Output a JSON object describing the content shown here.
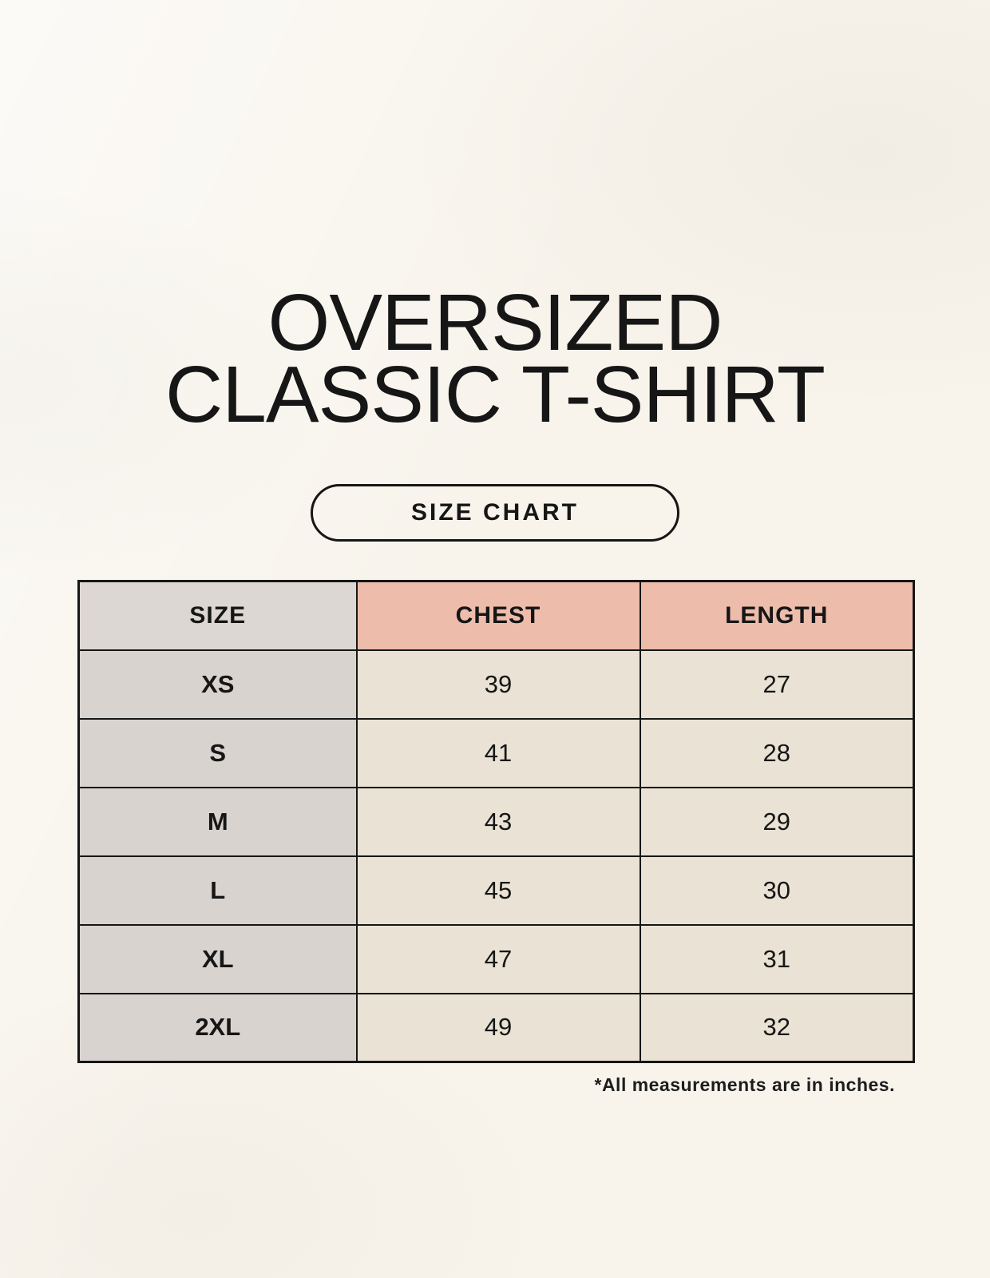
{
  "page": {
    "title_line1": "OVERSIZED",
    "title_line2": "CLASSIC T-SHIRT",
    "button_label": "SIZE CHART",
    "footnote": "*All measurements are in inches."
  },
  "chart_data": {
    "type": "table",
    "title": "OVERSIZED CLASSIC T-SHIRT — SIZE CHART",
    "columns": [
      "SIZE",
      "CHEST",
      "LENGTH"
    ],
    "rows": [
      [
        "XS",
        "39",
        "27"
      ],
      [
        "S",
        "41",
        "28"
      ],
      [
        "M",
        "43",
        "29"
      ],
      [
        "L",
        "45",
        "30"
      ],
      [
        "XL",
        "47",
        "31"
      ],
      [
        "2XL",
        "49",
        "32"
      ]
    ],
    "units_note": "*All measurements are in inches."
  },
  "colors": {
    "background": "#f8f4ec",
    "header_label_bg": "#ddd7d3",
    "header_accent_bg": "#eebcab",
    "row_label_bg": "#d9d3cf",
    "cell_bg": "#e9e2d5",
    "border": "#161616",
    "text": "#161616"
  }
}
